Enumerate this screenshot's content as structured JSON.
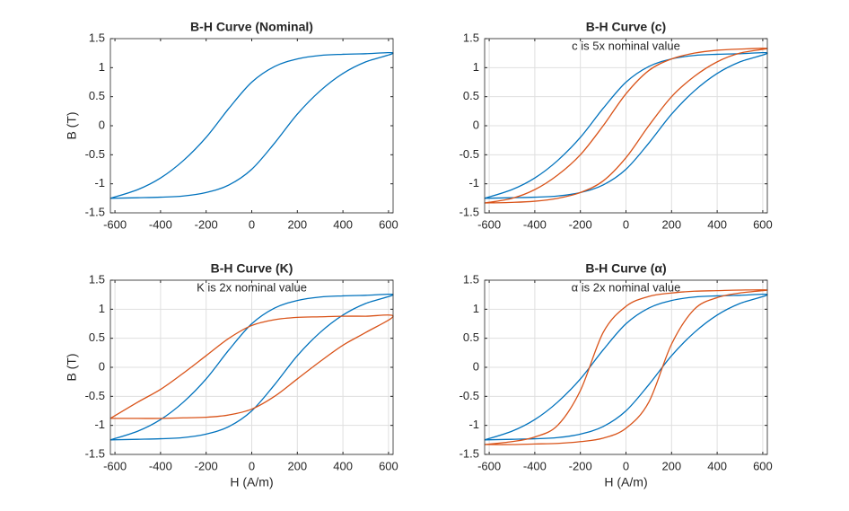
{
  "chart_data": [
    {
      "type": "line",
      "title": "B-H Curve (Nominal)",
      "ylabel": "B (T)",
      "grid": false,
      "xlim": [
        -620,
        620
      ],
      "ylim": [
        -1.5,
        1.5
      ],
      "xticks": [
        -600,
        -400,
        -200,
        0,
        200,
        400,
        600
      ],
      "yticks": [
        -1.5,
        -1,
        -0.5,
        0,
        0.5,
        1,
        1.5
      ],
      "x": [
        -620,
        -500,
        -400,
        -300,
        -200,
        -100,
        0,
        100,
        200,
        300,
        400,
        500,
        620,
        500,
        400,
        300,
        200,
        100,
        0,
        -100,
        -200,
        -300,
        -400,
        -500,
        -620
      ],
      "series": [
        {
          "color": "#0072bd",
          "values": [
            -1.25,
            -1.24,
            -1.23,
            -1.21,
            -1.15,
            -1.02,
            -0.75,
            -0.3,
            0.2,
            0.6,
            0.9,
            1.1,
            1.25,
            1.24,
            1.23,
            1.21,
            1.15,
            1.02,
            0.75,
            0.3,
            -0.2,
            -0.6,
            -0.9,
            -1.1,
            -1.25
          ]
        }
      ]
    },
    {
      "type": "line",
      "title": "B-H Curve (c)",
      "annotation": "c is 5x nominal value",
      "grid": true,
      "xlim": [
        -620,
        620
      ],
      "ylim": [
        -1.5,
        1.5
      ],
      "xticks": [
        -600,
        -400,
        -200,
        0,
        200,
        400,
        600
      ],
      "yticks": [
        -1.5,
        -1,
        -0.5,
        0,
        0.5,
        1,
        1.5
      ],
      "x": [
        -620,
        -500,
        -400,
        -300,
        -200,
        -100,
        0,
        100,
        200,
        300,
        400,
        500,
        620,
        500,
        400,
        300,
        200,
        100,
        0,
        -100,
        -200,
        -300,
        -400,
        -500,
        -620
      ],
      "series": [
        {
          "color": "#0072bd",
          "values": [
            -1.25,
            -1.24,
            -1.23,
            -1.21,
            -1.15,
            -1.02,
            -0.75,
            -0.3,
            0.2,
            0.6,
            0.9,
            1.1,
            1.25,
            1.24,
            1.23,
            1.21,
            1.15,
            1.02,
            0.75,
            0.3,
            -0.2,
            -0.6,
            -0.9,
            -1.1,
            -1.25
          ]
        },
        {
          "color": "#d95319",
          "values": [
            -1.33,
            -1.32,
            -1.3,
            -1.25,
            -1.15,
            -0.95,
            -0.55,
            0.0,
            0.5,
            0.85,
            1.1,
            1.25,
            1.33,
            1.32,
            1.3,
            1.25,
            1.15,
            0.95,
            0.55,
            0.0,
            -0.5,
            -0.85,
            -1.1,
            -1.25,
            -1.33
          ]
        }
      ]
    },
    {
      "type": "line",
      "title": "B-H Curve (K)",
      "annotation": "K is 2x nominal value",
      "xlabel": "H (A/m)",
      "ylabel": "B (T)",
      "grid": true,
      "xlim": [
        -620,
        620
      ],
      "ylim": [
        -1.5,
        1.5
      ],
      "xticks": [
        -600,
        -400,
        -200,
        0,
        200,
        400,
        600
      ],
      "yticks": [
        -1.5,
        -1,
        -0.5,
        0,
        0.5,
        1,
        1.5
      ],
      "x": [
        -620,
        -500,
        -400,
        -300,
        -200,
        -100,
        0,
        100,
        200,
        300,
        400,
        500,
        620,
        500,
        400,
        300,
        200,
        100,
        0,
        -100,
        -200,
        -300,
        -400,
        -500,
        -620
      ],
      "series": [
        {
          "color": "#0072bd",
          "values": [
            -1.25,
            -1.24,
            -1.23,
            -1.21,
            -1.15,
            -1.02,
            -0.75,
            -0.3,
            0.2,
            0.6,
            0.9,
            1.1,
            1.25,
            1.24,
            1.23,
            1.21,
            1.15,
            1.02,
            0.75,
            0.3,
            -0.2,
            -0.6,
            -0.9,
            -1.1,
            -1.25
          ]
        },
        {
          "color": "#d95319",
          "values": [
            -0.88,
            -0.88,
            -0.88,
            -0.87,
            -0.86,
            -0.82,
            -0.72,
            -0.5,
            -0.2,
            0.1,
            0.38,
            0.6,
            0.88,
            0.88,
            0.88,
            0.87,
            0.86,
            0.82,
            0.72,
            0.5,
            0.2,
            -0.1,
            -0.38,
            -0.6,
            -0.88
          ]
        }
      ]
    },
    {
      "type": "line",
      "title": "B-H  Curve  (α)",
      "annotation": "α  is  2x  nominal  value",
      "xlabel": "H (A/m)",
      "grid": true,
      "xlim": [
        -620,
        620
      ],
      "ylim": [
        -1.5,
        1.5
      ],
      "xticks": [
        -600,
        -400,
        -200,
        0,
        200,
        400,
        600
      ],
      "yticks": [
        -1.5,
        -1,
        -0.5,
        0,
        0.5,
        1,
        1.5
      ],
      "x": [
        -620,
        -500,
        -400,
        -300,
        -200,
        -100,
        0,
        100,
        200,
        300,
        400,
        500,
        620,
        500,
        400,
        300,
        200,
        100,
        0,
        -100,
        -200,
        -300,
        -400,
        -500,
        -620
      ],
      "series": [
        {
          "color": "#0072bd",
          "values": [
            -1.25,
            -1.24,
            -1.23,
            -1.21,
            -1.15,
            -1.02,
            -0.75,
            -0.3,
            0.2,
            0.6,
            0.9,
            1.1,
            1.25,
            1.24,
            1.23,
            1.21,
            1.15,
            1.02,
            0.75,
            0.3,
            -0.2,
            -0.6,
            -0.9,
            -1.1,
            -1.25
          ]
        },
        {
          "color": "#d95319",
          "values": [
            -1.33,
            -1.33,
            -1.32,
            -1.31,
            -1.28,
            -1.22,
            -1.05,
            -0.6,
            0.4,
            1.0,
            1.2,
            1.28,
            1.33,
            1.33,
            1.32,
            1.31,
            1.28,
            1.22,
            1.05,
            0.6,
            -0.4,
            -1.0,
            -1.2,
            -1.28,
            -1.33
          ]
        }
      ]
    }
  ]
}
